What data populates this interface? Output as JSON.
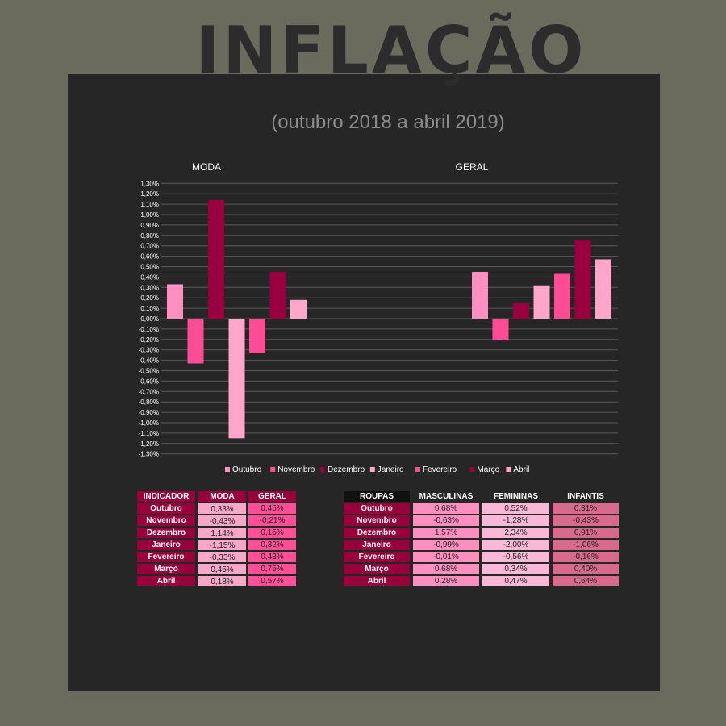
{
  "title": "INFLAÇÃO",
  "subtitle": "(outubro 2018 a abril 2019)",
  "colors": {
    "background": "#6a6b5d",
    "panel": "#262626",
    "Outubro": "#ff8fc1",
    "Novembro": "#ff4c95",
    "Dezembro": "#9a003f",
    "Janeiro": "#ffa6ca",
    "Fevereiro": "#ff4c95",
    "Março": "#9a003f",
    "Abril": "#ffa6ca"
  },
  "chart_data": {
    "type": "bar",
    "categories": [
      "MODA",
      "GERAL"
    ],
    "series": [
      {
        "name": "Outubro",
        "values": [
          0.33,
          0.45
        ]
      },
      {
        "name": "Novembro",
        "values": [
          -0.43,
          -0.21
        ]
      },
      {
        "name": "Dezembro",
        "values": [
          1.14,
          0.15
        ]
      },
      {
        "name": "Janeiro",
        "values": [
          -1.15,
          0.32
        ]
      },
      {
        "name": "Fevereiro",
        "values": [
          -0.33,
          0.43
        ]
      },
      {
        "name": "Março",
        "values": [
          0.45,
          0.75
        ]
      },
      {
        "name": "Abril",
        "values": [
          0.18,
          0.57
        ]
      }
    ],
    "ylim": [
      -1.3,
      1.3
    ],
    "ytick_step": 0.1,
    "yunit": "%",
    "grid": true,
    "legend": "bottom"
  },
  "table_left": {
    "headers": [
      "INDICADOR",
      "MODA",
      "GERAL"
    ],
    "rows": [
      [
        "Outubro",
        "0,33%",
        "0,45%"
      ],
      [
        "Novembro",
        "-0,43%",
        "-0,21%"
      ],
      [
        "Dezembro",
        "1,14%",
        "0,15%"
      ],
      [
        "Janeiro",
        "-1,15%",
        "0,32%"
      ],
      [
        "Fevereiro",
        "-0,33%",
        "0,43%"
      ],
      [
        "Março",
        "0,45%",
        "0,75%"
      ],
      [
        "Abril",
        "0,18%",
        "0,57%"
      ]
    ]
  },
  "table_right": {
    "headers": [
      "ROUPAS",
      "MASCULINAS",
      "FEMININAS",
      "INFANTIS"
    ],
    "rows": [
      [
        "Outubro",
        "0,68%",
        "0,52%",
        "0,31%"
      ],
      [
        "Novembro",
        "-0,63%",
        "-1,28%",
        "-0,43%"
      ],
      [
        "Dezembro",
        "1,57%",
        "2,34%",
        "0,91%"
      ],
      [
        "Janeiro",
        "-0,99%",
        "-2,00%",
        "-1,06%"
      ],
      [
        "Fevereiro",
        "-0,01%",
        "-0,56%",
        "-0,16%"
      ],
      [
        "Março",
        "0,68%",
        "0,34%",
        "0,40%"
      ],
      [
        "Abril",
        "0,28%",
        "0,47%",
        "0,64%"
      ]
    ]
  }
}
